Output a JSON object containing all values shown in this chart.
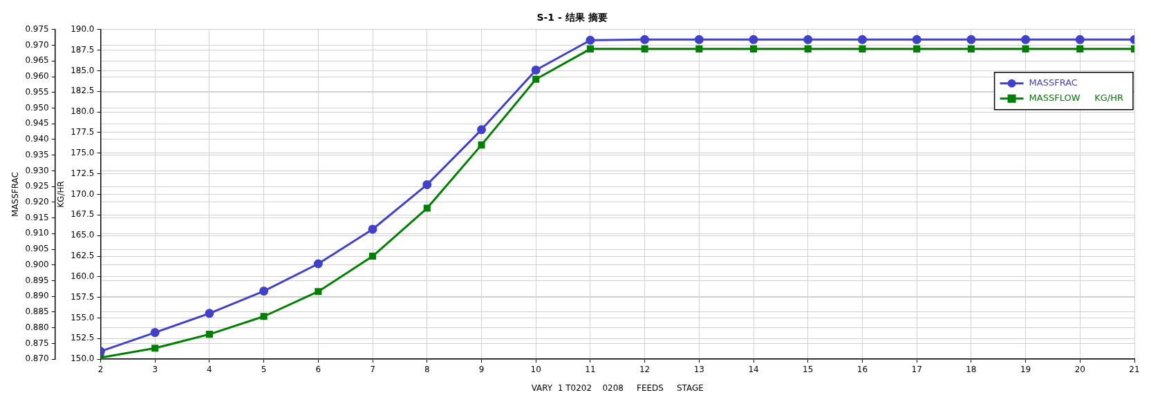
{
  "chart_data": {
    "type": "line",
    "title": "S-1 - 结果 摘要",
    "xlabel": "VARY  1 T0202    0208     FEEDS     STAGE",
    "ylabel": "MASSFRAC",
    "y2label": "KG/HR",
    "x": [
      2,
      3,
      4,
      5,
      6,
      7,
      8,
      9,
      10,
      11,
      12,
      13,
      14,
      15,
      16,
      17,
      18,
      19,
      20,
      21
    ],
    "series": [
      {
        "name": "MASSFRAC",
        "color": "#4040c8",
        "marker": "circle",
        "values": [
          0.8725,
          0.8785,
          0.8846,
          0.8917,
          0.9004,
          0.9114,
          0.9256,
          0.9431,
          0.9621,
          0.9716,
          0.9718,
          0.9718,
          0.9718,
          0.9718,
          0.9718,
          0.9718,
          0.9718,
          0.9718,
          0.9718,
          0.9718
        ]
      },
      {
        "name": "MASSFLOW     KG/HR",
        "color": "#008000",
        "marker": "square",
        "axis": "y2",
        "values": [
          150.19,
          151.34,
          153.02,
          155.19,
          158.21,
          162.5,
          168.32,
          176.0,
          183.97,
          187.65,
          187.65,
          187.65,
          187.65,
          187.65,
          187.65,
          187.65,
          187.65,
          187.65,
          187.65,
          187.65
        ]
      }
    ],
    "xlim": [
      2,
      21
    ],
    "xticks": [
      2,
      3,
      4,
      5,
      6,
      7,
      8,
      9,
      10,
      11,
      12,
      13,
      14,
      15,
      16,
      17,
      18,
      19,
      20,
      21
    ],
    "ylim": [
      0.87,
      0.975
    ],
    "yticks": [
      {
        "value": 0.87,
        "label": "0.870"
      },
      {
        "value": 0.875,
        "label": "0.875"
      },
      {
        "value": 0.88,
        "label": "0.880"
      },
      {
        "value": 0.885,
        "label": "0.885"
      },
      {
        "value": 0.89,
        "label": "0.890"
      },
      {
        "value": 0.895,
        "label": "0.895"
      },
      {
        "value": 0.9,
        "label": "0.900"
      },
      {
        "value": 0.905,
        "label": "0.905"
      },
      {
        "value": 0.91,
        "label": "0.910"
      },
      {
        "value": 0.915,
        "label": "0.915"
      },
      {
        "value": 0.92,
        "label": "0.920"
      },
      {
        "value": 0.925,
        "label": "0.925"
      },
      {
        "value": 0.93,
        "label": "0.930"
      },
      {
        "value": 0.935,
        "label": "0.935"
      },
      {
        "value": 0.94,
        "label": "0.940"
      },
      {
        "value": 0.945,
        "label": "0.945"
      },
      {
        "value": 0.95,
        "label": "0.950"
      },
      {
        "value": 0.955,
        "label": "0.955"
      },
      {
        "value": 0.96,
        "label": "0.960"
      },
      {
        "value": 0.965,
        "label": "0.965"
      },
      {
        "value": 0.97,
        "label": "0.970"
      },
      {
        "value": 0.975,
        "label": "0.975"
      }
    ],
    "y2lim": [
      150,
      190
    ],
    "y2ticks": [
      {
        "value": 150,
        "label": "150.0"
      },
      {
        "value": 152.5,
        "label": "152.5"
      },
      {
        "value": 155,
        "label": "155.0"
      },
      {
        "value": 157.5,
        "label": "157.5"
      },
      {
        "value": 160,
        "label": "160.0"
      },
      {
        "value": 162.5,
        "label": "162.5"
      },
      {
        "value": 165,
        "label": "165.0"
      },
      {
        "value": 167.5,
        "label": "167.5"
      },
      {
        "value": 170,
        "label": "170.0"
      },
      {
        "value": 172.5,
        "label": "172.5"
      },
      {
        "value": 175,
        "label": "175.0"
      },
      {
        "value": 177.5,
        "label": "177.5"
      },
      {
        "value": 180,
        "label": "180.0"
      },
      {
        "value": 182.5,
        "label": "182.5"
      },
      {
        "value": 185,
        "label": "185.0"
      },
      {
        "value": 187.5,
        "label": "187.5"
      },
      {
        "value": 190,
        "label": "190.0"
      }
    ],
    "grid": true,
    "legend": "top right",
    "line_style": "solid"
  }
}
